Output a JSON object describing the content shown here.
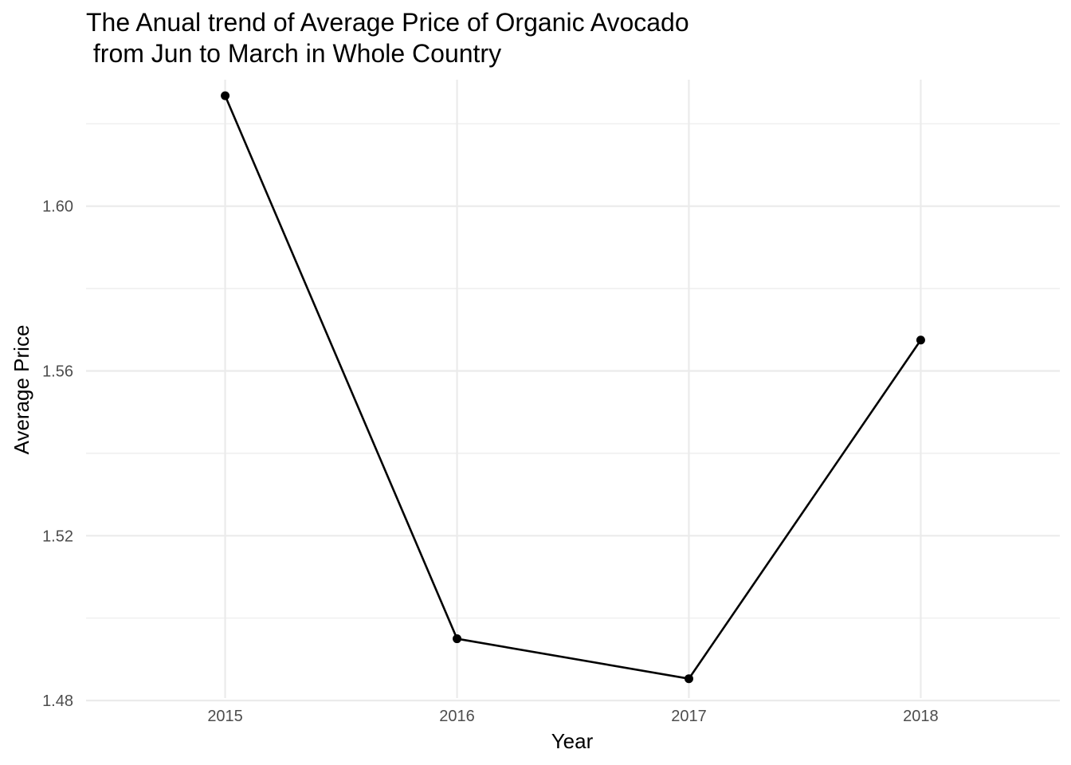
{
  "chart_data": {
    "type": "line",
    "title": "The Anual trend of Average Price of Organic Avocado",
    "title_line2": " from Jun to March in Whole Country",
    "xlabel": "Year",
    "ylabel": "Average Price",
    "x": [
      "2015",
      "2016",
      "2017",
      "2018"
    ],
    "series": [
      {
        "values": [
          1.6268,
          1.495,
          1.4853,
          1.5675
        ]
      }
    ],
    "ylim": [
      1.4806,
      1.6307
    ],
    "yticks": [
      "1.48",
      "1.52",
      "1.56",
      "1.60"
    ],
    "ytick_values": [
      1.48,
      1.52,
      1.56,
      1.6
    ],
    "yminor_values": [
      1.5,
      1.54,
      1.58,
      1.62
    ],
    "grid": true,
    "legend": "none",
    "colors": {
      "line": "#000000",
      "grid": "#ebebeb",
      "background": "#ffffff"
    }
  }
}
